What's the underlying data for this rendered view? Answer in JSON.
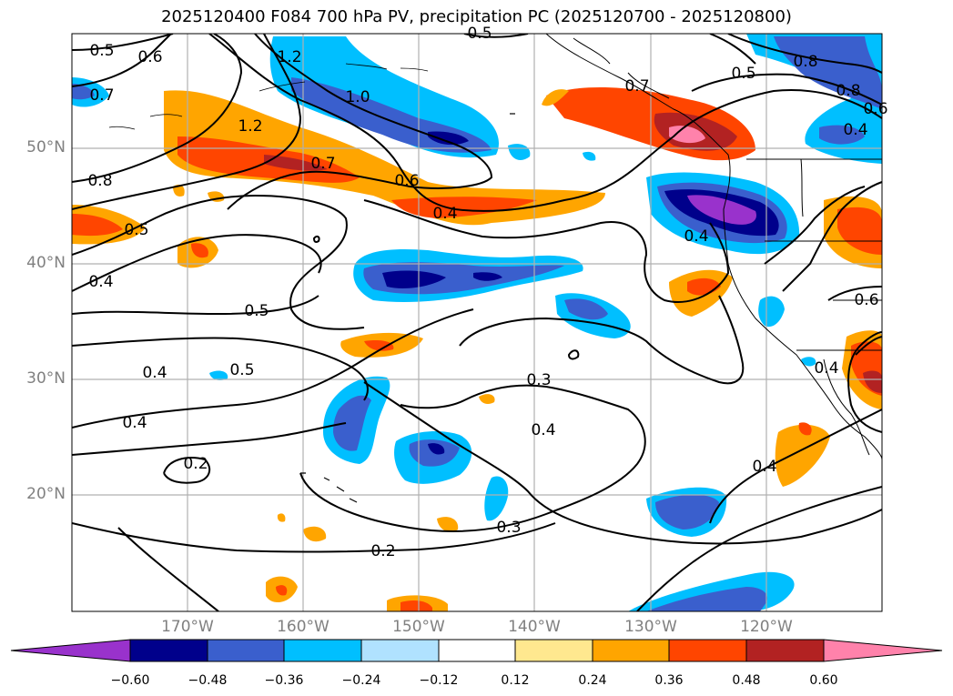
{
  "title": "2025120400 F084 700 hPa PV, precipitation PC (2025120700 - 2025120800)",
  "map": {
    "region": "North-East Pacific",
    "lat_labels": [
      "50°N",
      "40°N",
      "30°N",
      "20°N"
    ],
    "lon_labels": [
      "170°W",
      "160°W",
      "150°W",
      "140°W",
      "130°W",
      "120°W"
    ],
    "contour_labels": [
      "0.5",
      "0.6",
      "1.2",
      "1.0",
      "0.7",
      "0.8",
      "0.7",
      "1.2",
      "0.7",
      "0.6",
      "0.8",
      "0.5",
      "0.5",
      "0.4",
      "0.4",
      "0.4",
      "0.5",
      "0.4",
      "0.4",
      "0.5",
      "0.4",
      "0.3",
      "0.4",
      "0.2",
      "0.2",
      "0.3",
      "0.4",
      "0.8",
      "0.4",
      "0.6",
      "0.6",
      "0.5"
    ]
  },
  "colorbar": {
    "ticks": [
      "−0.60",
      "−0.48",
      "−0.36",
      "−0.24",
      "−0.12",
      "0.12",
      "0.24",
      "0.36",
      "0.48",
      "0.60"
    ],
    "colors": [
      "#9932cc",
      "#00008b",
      "#3a5fcd",
      "#00bfff",
      "#b0e2ff",
      "#ffffff",
      "#ffe88f",
      "#ffa500",
      "#ff4500",
      "#b22222",
      "#ff82ab"
    ]
  }
}
